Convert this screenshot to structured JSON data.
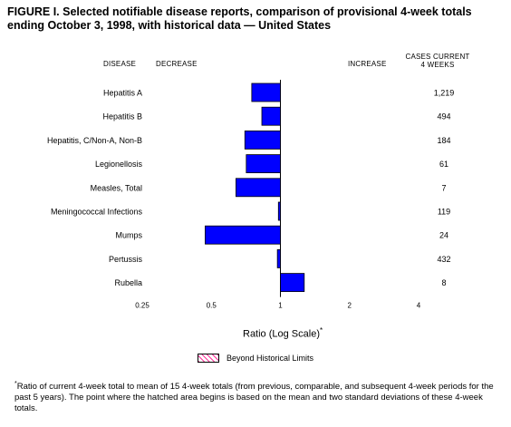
{
  "title": "FIGURE I. Selected notifiable disease reports, comparison of provisional 4-week totals ending October 3, 1998, with historical data — United States",
  "headers": {
    "disease": "DISEASE",
    "decrease": "DECREASE",
    "increase": "INCREASE",
    "cases_line1": "CASES CURRENT",
    "cases_line2": "4 WEEKS"
  },
  "axis_title": "Ratio (Log Scale)",
  "axis_title_marker": "*",
  "legend_label": "Beyond Historical Limits",
  "footnote_marker": "*",
  "footnote": "Ratio of current 4-week total to mean of 15 4-week totals (from previous, comparable, and subsequent 4-week periods for the past 5 years). The point where the hatched area begins is based on the mean and two standard deviations of these 4-week totals.",
  "colors": {
    "bar": "#0000ff",
    "hatch": "#ff3399"
  },
  "chart_data": {
    "type": "bar",
    "orientation": "horizontal",
    "scale": "log",
    "xlim": [
      0.25,
      4
    ],
    "ticks": [
      0.25,
      0.5,
      1,
      2,
      4
    ],
    "tick_labels": [
      "0.25",
      "0.5",
      "1",
      "2",
      "4"
    ],
    "baseline": 1,
    "categories": [
      "Hepatitis A",
      "Hepatitis B",
      "Hepatitis, C/Non-A, Non-B",
      "Legionellosis",
      "Measles, Total",
      "Meningococcal Infections",
      "Mumps",
      "Pertussis",
      "Rubella"
    ],
    "values": [
      0.75,
      0.83,
      0.7,
      0.71,
      0.64,
      0.98,
      0.47,
      0.97,
      1.27
    ],
    "cases": [
      "1,219",
      "494",
      "184",
      "61",
      "7",
      "119",
      "24",
      "432",
      "8"
    ],
    "xlabel": "Ratio (Log Scale)"
  }
}
